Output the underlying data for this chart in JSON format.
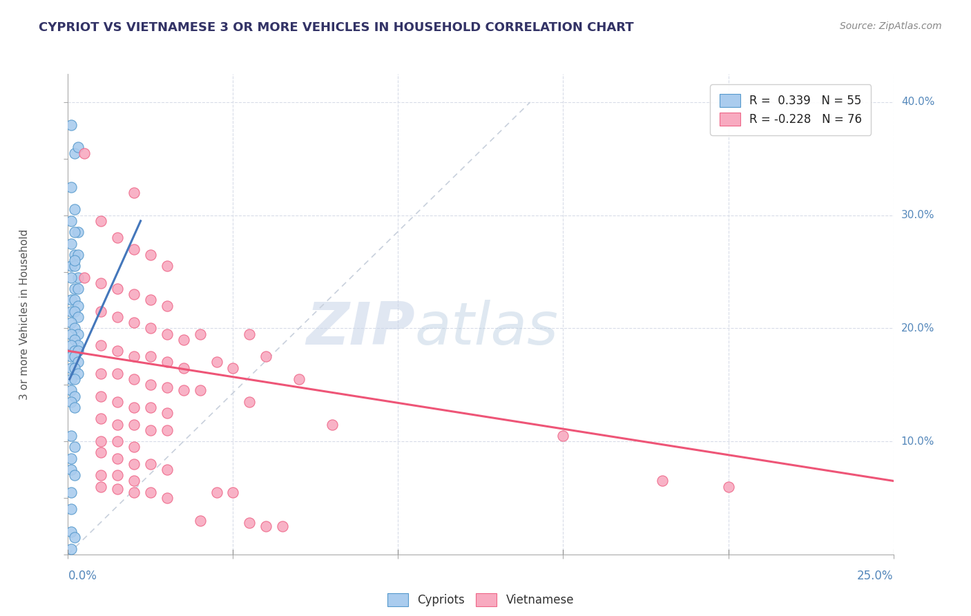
{
  "title": "CYPRIOT VS VIETNAMESE 3 OR MORE VEHICLES IN HOUSEHOLD CORRELATION CHART",
  "source_text": "Source: ZipAtlas.com",
  "ylabel": "3 or more Vehicles in Household",
  "right_yticks": [
    "40.0%",
    "30.0%",
    "20.0%",
    "10.0%"
  ],
  "right_ytick_vals": [
    0.4,
    0.3,
    0.2,
    0.1
  ],
  "xmin": 0.0,
  "xmax": 0.25,
  "ymin": 0.0,
  "ymax": 0.425,
  "cypriot_color": "#aaccee",
  "vietnamese_color": "#f8aac0",
  "cypriot_edge_color": "#5599cc",
  "vietnamese_edge_color": "#ee6688",
  "cypriot_line_color": "#4477bb",
  "vietnamese_line_color": "#ee5577",
  "ref_line_color": "#c8d0dc",
  "watermark_color": "#ccd8ee",
  "cypriot_points": [
    [
      0.001,
      0.38
    ],
    [
      0.002,
      0.355
    ],
    [
      0.003,
      0.36
    ],
    [
      0.001,
      0.325
    ],
    [
      0.002,
      0.305
    ],
    [
      0.003,
      0.285
    ],
    [
      0.001,
      0.295
    ],
    [
      0.002,
      0.285
    ],
    [
      0.001,
      0.275
    ],
    [
      0.002,
      0.265
    ],
    [
      0.003,
      0.265
    ],
    [
      0.001,
      0.255
    ],
    [
      0.002,
      0.255
    ],
    [
      0.003,
      0.245
    ],
    [
      0.001,
      0.245
    ],
    [
      0.002,
      0.235
    ],
    [
      0.003,
      0.235
    ],
    [
      0.001,
      0.225
    ],
    [
      0.002,
      0.225
    ],
    [
      0.003,
      0.22
    ],
    [
      0.001,
      0.215
    ],
    [
      0.002,
      0.215
    ],
    [
      0.003,
      0.21
    ],
    [
      0.001,
      0.205
    ],
    [
      0.002,
      0.2
    ],
    [
      0.003,
      0.195
    ],
    [
      0.001,
      0.195
    ],
    [
      0.002,
      0.19
    ],
    [
      0.003,
      0.185
    ],
    [
      0.001,
      0.185
    ],
    [
      0.002,
      0.18
    ],
    [
      0.003,
      0.18
    ],
    [
      0.001,
      0.175
    ],
    [
      0.002,
      0.175
    ],
    [
      0.003,
      0.17
    ],
    [
      0.001,
      0.165
    ],
    [
      0.002,
      0.165
    ],
    [
      0.003,
      0.16
    ],
    [
      0.001,
      0.155
    ],
    [
      0.002,
      0.155
    ],
    [
      0.001,
      0.145
    ],
    [
      0.002,
      0.14
    ],
    [
      0.001,
      0.135
    ],
    [
      0.002,
      0.13
    ],
    [
      0.001,
      0.105
    ],
    [
      0.002,
      0.095
    ],
    [
      0.001,
      0.085
    ],
    [
      0.001,
      0.075
    ],
    [
      0.002,
      0.07
    ],
    [
      0.001,
      0.055
    ],
    [
      0.001,
      0.04
    ],
    [
      0.001,
      0.02
    ],
    [
      0.002,
      0.015
    ],
    [
      0.001,
      0.005
    ],
    [
      0.002,
      0.26
    ]
  ],
  "vietnamese_points": [
    [
      0.005,
      0.355
    ],
    [
      0.02,
      0.32
    ],
    [
      0.01,
      0.295
    ],
    [
      0.015,
      0.28
    ],
    [
      0.02,
      0.27
    ],
    [
      0.025,
      0.265
    ],
    [
      0.03,
      0.255
    ],
    [
      0.005,
      0.245
    ],
    [
      0.01,
      0.24
    ],
    [
      0.015,
      0.235
    ],
    [
      0.02,
      0.23
    ],
    [
      0.025,
      0.225
    ],
    [
      0.03,
      0.22
    ],
    [
      0.01,
      0.215
    ],
    [
      0.015,
      0.21
    ],
    [
      0.02,
      0.205
    ],
    [
      0.025,
      0.2
    ],
    [
      0.03,
      0.195
    ],
    [
      0.035,
      0.19
    ],
    [
      0.01,
      0.185
    ],
    [
      0.015,
      0.18
    ],
    [
      0.02,
      0.175
    ],
    [
      0.025,
      0.175
    ],
    [
      0.03,
      0.17
    ],
    [
      0.035,
      0.165
    ],
    [
      0.01,
      0.16
    ],
    [
      0.015,
      0.16
    ],
    [
      0.02,
      0.155
    ],
    [
      0.025,
      0.15
    ],
    [
      0.03,
      0.148
    ],
    [
      0.035,
      0.145
    ],
    [
      0.01,
      0.14
    ],
    [
      0.015,
      0.135
    ],
    [
      0.02,
      0.13
    ],
    [
      0.025,
      0.13
    ],
    [
      0.03,
      0.125
    ],
    [
      0.01,
      0.12
    ],
    [
      0.015,
      0.115
    ],
    [
      0.02,
      0.115
    ],
    [
      0.025,
      0.11
    ],
    [
      0.03,
      0.11
    ],
    [
      0.01,
      0.1
    ],
    [
      0.015,
      0.1
    ],
    [
      0.02,
      0.095
    ],
    [
      0.01,
      0.09
    ],
    [
      0.015,
      0.085
    ],
    [
      0.02,
      0.08
    ],
    [
      0.025,
      0.08
    ],
    [
      0.03,
      0.075
    ],
    [
      0.01,
      0.07
    ],
    [
      0.015,
      0.07
    ],
    [
      0.02,
      0.065
    ],
    [
      0.01,
      0.06
    ],
    [
      0.015,
      0.058
    ],
    [
      0.02,
      0.055
    ],
    [
      0.025,
      0.055
    ],
    [
      0.03,
      0.05
    ],
    [
      0.04,
      0.195
    ],
    [
      0.055,
      0.195
    ],
    [
      0.045,
      0.17
    ],
    [
      0.05,
      0.165
    ],
    [
      0.04,
      0.145
    ],
    [
      0.055,
      0.135
    ],
    [
      0.06,
      0.175
    ],
    [
      0.07,
      0.155
    ],
    [
      0.08,
      0.115
    ],
    [
      0.15,
      0.105
    ],
    [
      0.18,
      0.065
    ],
    [
      0.2,
      0.06
    ],
    [
      0.045,
      0.055
    ],
    [
      0.05,
      0.055
    ],
    [
      0.04,
      0.03
    ],
    [
      0.055,
      0.028
    ],
    [
      0.06,
      0.025
    ],
    [
      0.065,
      0.025
    ]
  ],
  "cyp_trend_x": [
    0.0005,
    0.022
  ],
  "cyp_trend_y": [
    0.155,
    0.295
  ],
  "vie_trend_x": [
    0.0,
    0.25
  ],
  "vie_trend_y": [
    0.18,
    0.065
  ],
  "ref_line_x": [
    0.0,
    0.14
  ],
  "ref_line_y": [
    0.0,
    0.4
  ],
  "xtick_positions": [
    0.0,
    0.05,
    0.1,
    0.15,
    0.2,
    0.25
  ]
}
